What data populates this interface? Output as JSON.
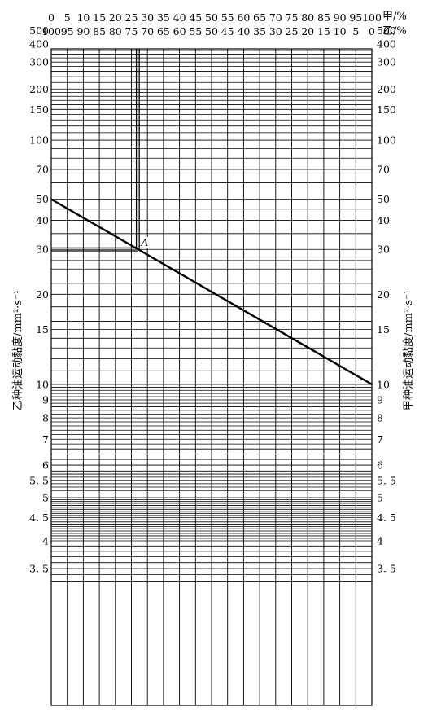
{
  "chart_data": {
    "type": "line",
    "title": "",
    "top_axis_a_label": "甲/%",
    "top_axis_b_label": "乙/%",
    "left_axis_label": "乙种油运动黏度/mm²·s⁻¹",
    "right_axis_label": "甲种油运动黏度/mm²·s⁻¹",
    "top_ticks_a": [
      "0",
      "5",
      "10",
      "15",
      "20",
      "25",
      "30",
      "35",
      "40",
      "45",
      "50",
      "55",
      "60",
      "65",
      "70",
      "75",
      "80",
      "85",
      "90",
      "95",
      "100"
    ],
    "top_ticks_b": [
      "100",
      "95",
      "90",
      "85",
      "80",
      "75",
      "70",
      "65",
      "60",
      "55",
      "50",
      "45",
      "40",
      "35",
      "30",
      "25",
      "20",
      "15",
      "10",
      "5",
      "0"
    ],
    "x_range": [
      0,
      100
    ],
    "y_range": [
      3.2,
      600
    ],
    "y_scale": "ASTM viscosity-blending (log-log)",
    "y_tick_labels": [
      {
        "value": 500,
        "text": "500"
      },
      {
        "value": 400,
        "text": "400"
      },
      {
        "value": 300,
        "text": "300"
      },
      {
        "value": 200,
        "text": "200"
      },
      {
        "value": 150,
        "text": "150"
      },
      {
        "value": 100,
        "text": "100"
      },
      {
        "value": 70,
        "text": "70"
      },
      {
        "value": 50,
        "text": "50"
      },
      {
        "value": 40,
        "text": "40"
      },
      {
        "value": 30,
        "text": "30"
      },
      {
        "value": 20,
        "text": "20"
      },
      {
        "value": 15,
        "text": "15"
      },
      {
        "value": 10,
        "text": "10"
      },
      {
        "value": 9,
        "text": "9"
      },
      {
        "value": 8,
        "text": "8"
      },
      {
        "value": 7,
        "text": "7"
      },
      {
        "value": 6,
        "text": "6"
      },
      {
        "value": 5.5,
        "text": "5. 5"
      },
      {
        "value": 5,
        "text": "5"
      },
      {
        "value": 4.5,
        "text": "4. 5"
      },
      {
        "value": 4,
        "text": "4"
      },
      {
        "value": 3.5,
        "text": "3. 5"
      }
    ],
    "y_grid_values": [
      600,
      550,
      500,
      480,
      460,
      440,
      420,
      400,
      380,
      360,
      340,
      320,
      300,
      280,
      260,
      240,
      220,
      200,
      190,
      180,
      170,
      160,
      150,
      140,
      130,
      120,
      110,
      100,
      90,
      80,
      70,
      60,
      50,
      45,
      40,
      35,
      30,
      27,
      25,
      22,
      20,
      18,
      16,
      15,
      14,
      13,
      12,
      11,
      10,
      9.8,
      9.6,
      9.4,
      9.2,
      9,
      8.8,
      8.6,
      8.4,
      8.2,
      8,
      7.8,
      7.6,
      7.4,
      7.2,
      7,
      6.8,
      6.6,
      6.4,
      6.2,
      6,
      5.9,
      5.8,
      5.7,
      5.6,
      5.5,
      5.4,
      5.3,
      5.2,
      5.1,
      5,
      4.95,
      4.9,
      4.85,
      4.8,
      4.75,
      4.7,
      4.65,
      4.6,
      4.55,
      4.5,
      4.45,
      4.4,
      4.35,
      4.3,
      4.25,
      4.2,
      4.15,
      4.1,
      4.05,
      4,
      3.9,
      3.8,
      3.7,
      3.6,
      3.5,
      3.4,
      3.3
    ],
    "series": [
      {
        "values": [
          {
            "x": 0,
            "y": 50
          },
          {
            "x": 100,
            "y": 10
          }
        ]
      }
    ],
    "guide_lines": {
      "x": 27,
      "y": 30
    },
    "annotations": [
      {
        "text": "A",
        "x": 27,
        "y": 30
      }
    ],
    "grid": true
  }
}
